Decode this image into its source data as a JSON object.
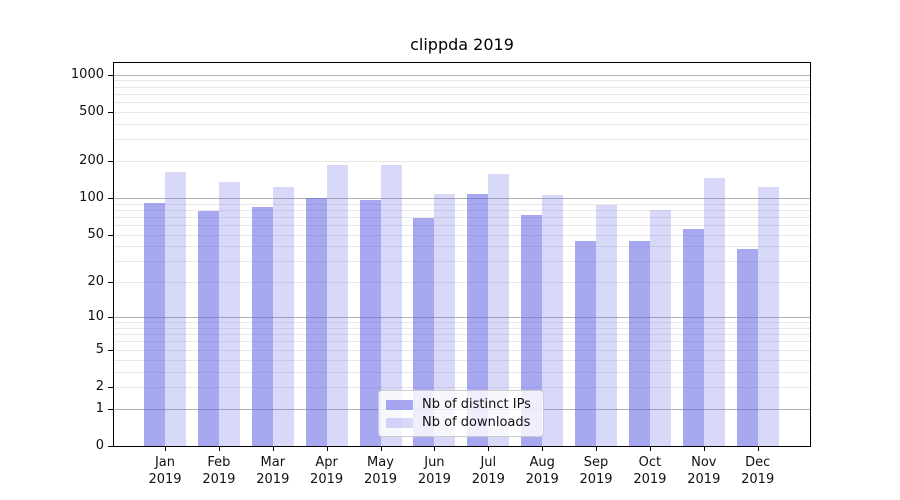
{
  "chart_data": {
    "type": "bar",
    "title": "clippda 2019",
    "categories": [
      "Jan 2019",
      "Feb 2019",
      "Mar 2019",
      "Apr 2019",
      "May 2019",
      "Jun 2019",
      "Jul 2019",
      "Aug 2019",
      "Sep 2019",
      "Oct 2019",
      "Nov 2019",
      "Dec 2019"
    ],
    "month_labels": [
      "Jan",
      "Feb",
      "Mar",
      "Apr",
      "May",
      "Jun",
      "Jul",
      "Aug",
      "Sep",
      "Oct",
      "Nov",
      "Dec"
    ],
    "year_label": "2019",
    "series": [
      {
        "name": "Nb of distinct IPs",
        "color": "rgba(100,100,230,0.56)",
        "values": [
          91,
          78,
          84,
          100,
          97,
          69,
          107,
          73,
          44,
          44,
          56,
          38
        ]
      },
      {
        "name": "Nb of downloads",
        "color": "rgba(100,100,230,0.25)",
        "values": [
          163,
          136,
          123,
          184,
          184,
          107,
          156,
          105,
          88,
          80,
          144,
          123
        ]
      }
    ],
    "y_scale": "log1p",
    "ylim": [
      0,
      1240
    ],
    "y_ticks": [
      0,
      1,
      2,
      5,
      10,
      20,
      50,
      100,
      200,
      500,
      1000
    ],
    "y_major_gridlines": [
      1,
      10,
      100,
      1000
    ],
    "y_minor_gridlines": [
      2,
      3,
      4,
      5,
      6,
      7,
      8,
      9,
      20,
      30,
      40,
      50,
      60,
      70,
      80,
      90,
      200,
      300,
      400,
      500,
      600,
      700,
      800,
      900
    ],
    "grid": true,
    "legend_position": "lower center",
    "colors": {
      "bar_dark": "#a9a9f1",
      "bar_light": "#d8d8fa",
      "grid_minor": "#e8e8e8",
      "grid_major": "#b2b2b2",
      "axis": "#000000",
      "legend_border": "#cccccc"
    }
  }
}
